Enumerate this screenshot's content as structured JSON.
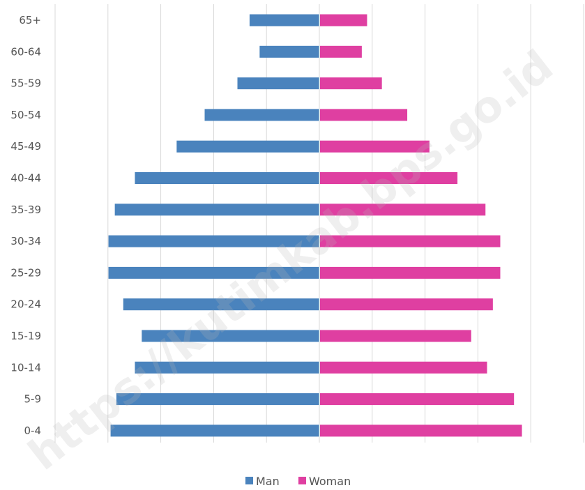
{
  "chart_data": {
    "type": "bar",
    "orientation": "horizontal",
    "subtype": "population-pyramid",
    "categories": [
      "65+",
      "60-64",
      "55-59",
      "50-54",
      "45-49",
      "40-44",
      "35-39",
      "30-34",
      "25-29",
      "20-24",
      "15-19",
      "10-14",
      "5-9",
      "0-4"
    ],
    "series": [
      {
        "name": "Man",
        "color": "#4a83bd",
        "side": "left",
        "values": [
          1.32,
          1.13,
          1.55,
          2.17,
          2.7,
          3.49,
          3.87,
          3.99,
          3.99,
          3.71,
          3.36,
          3.49,
          3.84,
          3.95
        ]
      },
      {
        "name": "Woman",
        "color": "#df3fa1",
        "side": "right",
        "values": [
          0.89,
          0.79,
          1.17,
          1.65,
          2.07,
          2.6,
          3.13,
          3.41,
          3.41,
          3.27,
          2.86,
          3.16,
          3.67,
          3.82
        ]
      }
    ],
    "xlim": [
      -5,
      5
    ],
    "grid": true,
    "legend_position": "bottom"
  },
  "watermark": {
    "text": "https://kutimkab.bps.go.id"
  }
}
